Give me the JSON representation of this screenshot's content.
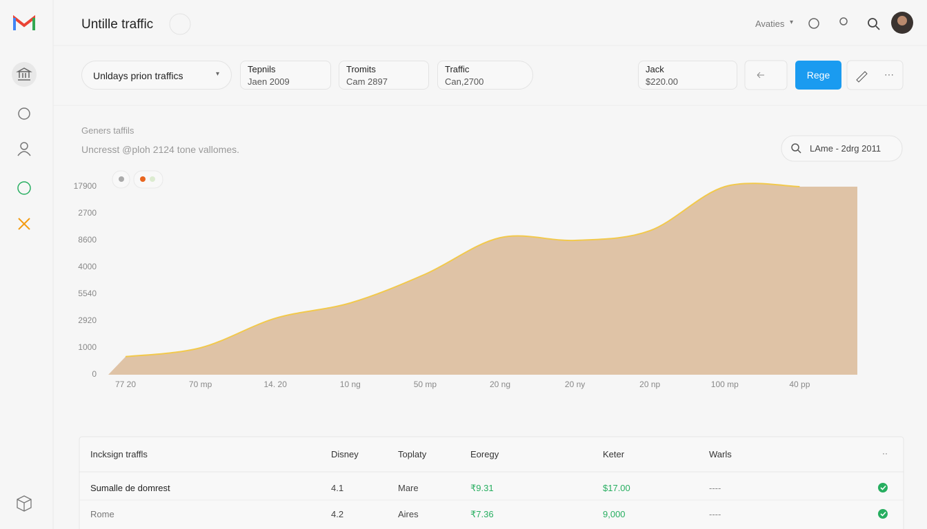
{
  "app": {
    "title": "Untille traffic"
  },
  "header": {
    "account": "Avaties"
  },
  "filters": {
    "dropdown": "Unldays prion traffics",
    "cards": [
      {
        "label": "Tepnils",
        "value": "Jaen 2009"
      },
      {
        "label": "Tromits",
        "value": "Cam 2897"
      },
      {
        "label": "Traffic",
        "value": "Can,2700"
      },
      {
        "label": "Jack",
        "value": "$220.00"
      }
    ],
    "button": "Rege"
  },
  "chart_data": {
    "type": "area",
    "title": "Geners taffils",
    "subtitle": "Uncresst @ploh 2124 tone vallomes.",
    "date_range": "LAme - 2drg 2011",
    "categories": [
      "77 20",
      "70 mp",
      "14. 20",
      "10 ng",
      "50 mp",
      "20 ng",
      "20 ny",
      "20 np",
      "100 mp",
      "40 pp"
    ],
    "values": [
      0.67,
      1.0,
      2.1,
      2.67,
      3.74,
      5.1,
      5.0,
      5.36,
      7.0,
      7.0
    ],
    "color": "#dfc3a6",
    "line_color": "#f2c94c",
    "ylim": [
      0,
      7
    ],
    "yticks": [
      {
        "value": 0,
        "label": "0"
      },
      {
        "value": 1,
        "label": "1000"
      },
      {
        "value": 2,
        "label": "2920"
      },
      {
        "value": 3,
        "label": "5540"
      },
      {
        "value": 4,
        "label": "4000"
      },
      {
        "value": 5,
        "label": "8600"
      },
      {
        "value": 6,
        "label": "2700"
      },
      {
        "value": 7,
        "label": "17900"
      }
    ]
  },
  "table": {
    "header": [
      "Incksign traffls",
      "Disney",
      "Toplaty",
      "Eoregy",
      "Keter",
      "Warls"
    ],
    "rows": [
      [
        "Sumalle de domrest",
        "4.1",
        "Mare",
        "₹9.31",
        "$17.00",
        "----"
      ],
      [
        "Rome",
        "4.2",
        "Aires",
        "₹7.36",
        "9,000",
        "----"
      ]
    ]
  }
}
